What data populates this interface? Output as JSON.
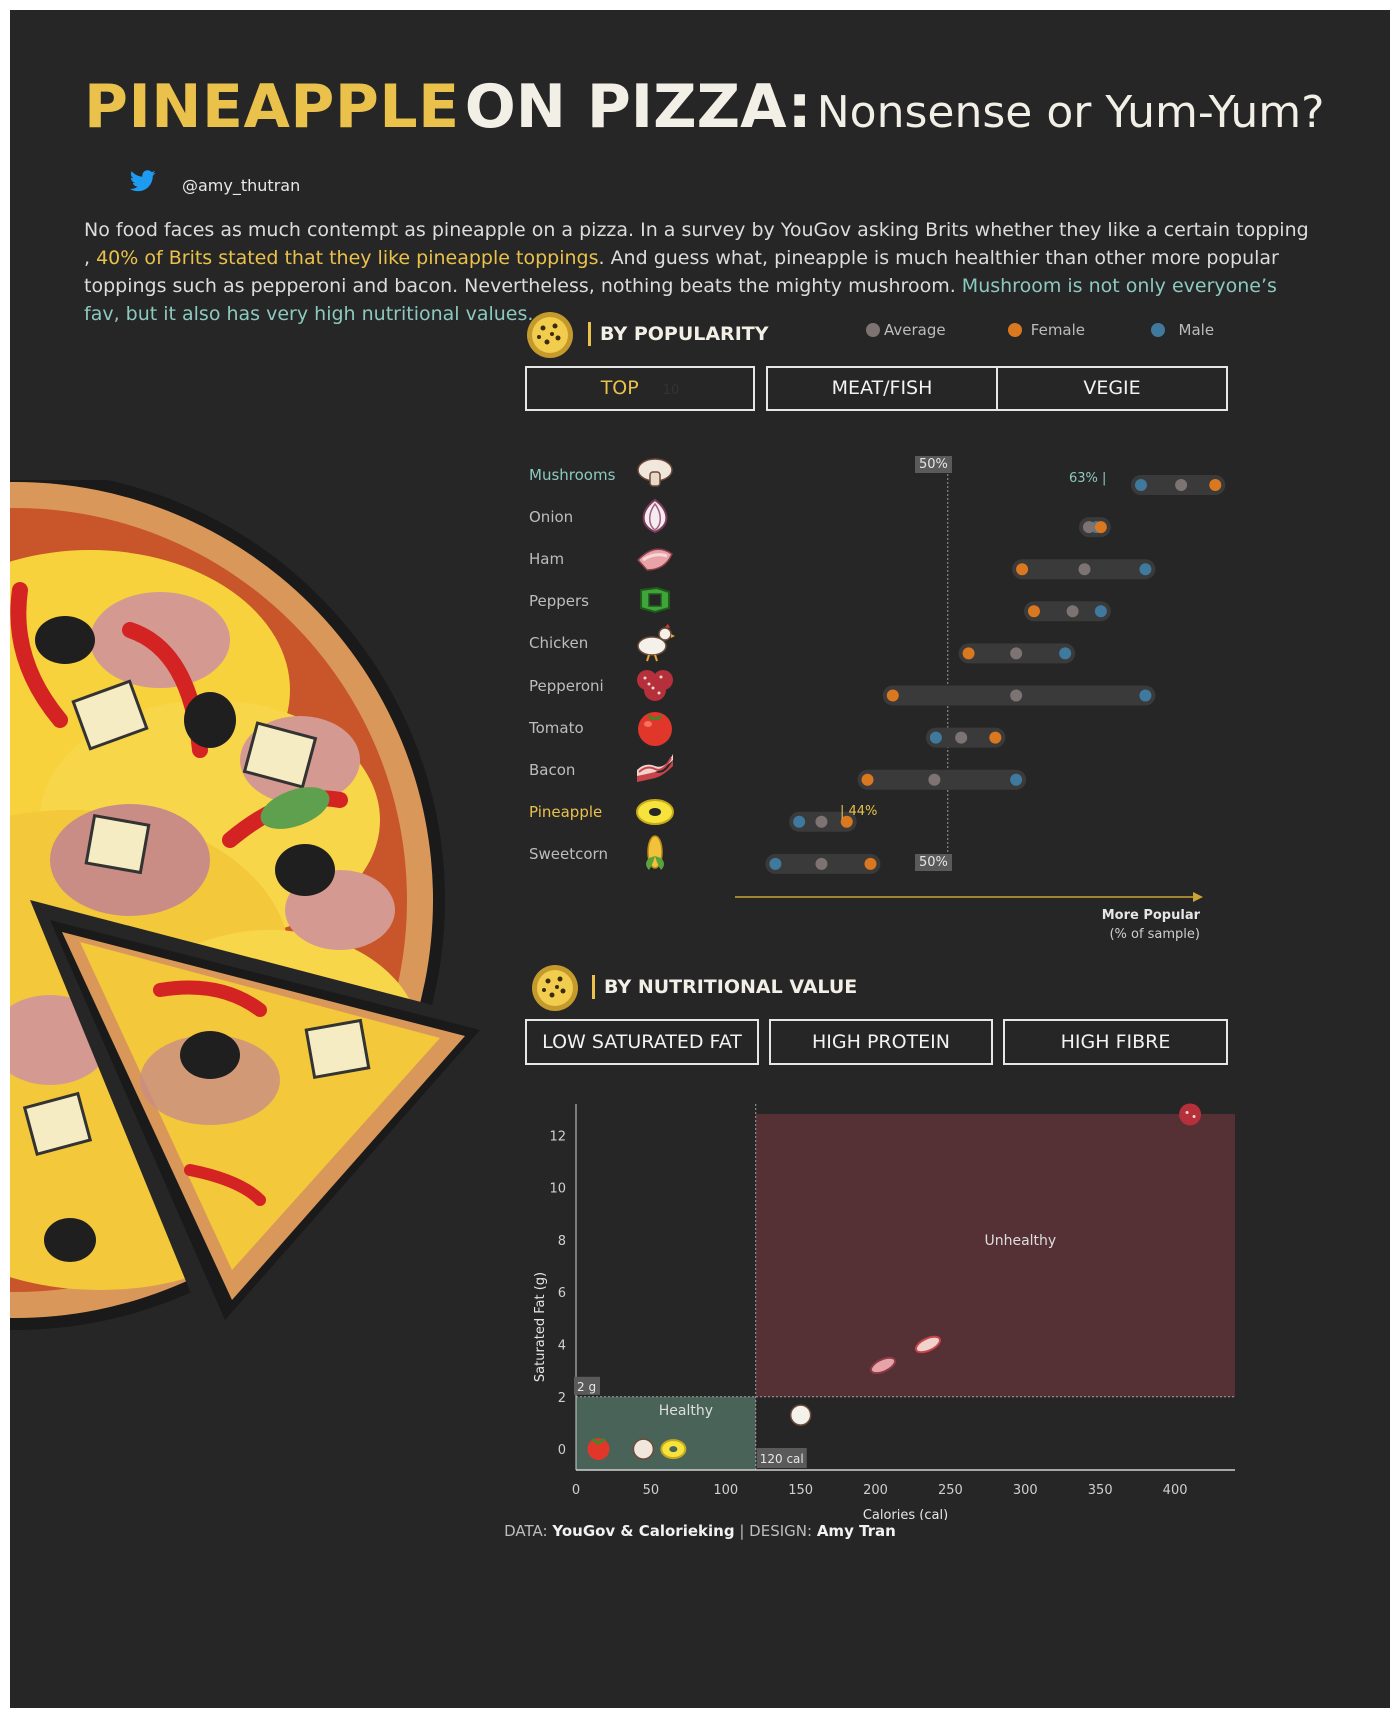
{
  "header": {
    "title_part1": "PINEAPPLE",
    "title_part2": "ON PIZZA:",
    "title_part3": "Nonsense or Yum-Yum?",
    "handle": "@amy_thutran"
  },
  "intro": {
    "s1": "No food faces as much contempt as pineapple on a pizza. In a survey by YouGov asking Brits whether they like a certain topping , ",
    "s2": "40% of Brits stated that they like pineapple toppings",
    "s3": ". And guess what, pineapple is much healthier than other more popular toppings such as pepperoni and bacon. Nevertheless, nothing beats the mighty mushroom. ",
    "s4": "Mushroom is not only everyone’s fav, but it also has very high nutritional values."
  },
  "popularity": {
    "section_title": "BY POPULARITY",
    "legend": [
      {
        "label": "Average",
        "color": "#7d7373"
      },
      {
        "label": "Female",
        "color": "#d9781f"
      },
      {
        "label": "Male",
        "color": "#3f7a9e"
      }
    ],
    "tabs": [
      {
        "label": "TOP"
      },
      {
        "label": "MEAT/FISH"
      },
      {
        "label": "VEGIE"
      }
    ],
    "ghost_tab_number": "10",
    "ref_label_top": "50%",
    "ref_label_bottom": "50%",
    "axis_label_1": "More Popular",
    "axis_label_2": "(% of sample)",
    "annotation_mushroom": "63% |",
    "annotation_pineapple": "| 44%"
  },
  "nutrition": {
    "section_title": "BY NUTRITIONAL VALUE",
    "tabs": [
      {
        "label": "LOW SATURATED FAT"
      },
      {
        "label": "HIGH PROTEIN"
      },
      {
        "label": "HIGH FIBRE"
      }
    ],
    "healthy_label": "Healthy",
    "unhealthy_label": "Unhealthy",
    "fat_threshold_label": "2 g",
    "cal_threshold_label": "120 cal"
  },
  "footer": {
    "data_label": "DATA:",
    "data_source": "YouGov & Calorieking",
    "design_label": "| DESIGN:",
    "designer": "Amy Tran"
  },
  "chart_data": [
    {
      "type": "dumbbell",
      "title": "BY POPULARITY",
      "xlabel": "More Popular (% of sample)",
      "xlim": [
        34,
        70
      ],
      "reference_line": 50,
      "series_names": [
        "Average",
        "Female",
        "Male"
      ],
      "rows": [
        {
          "name": "Mushrooms",
          "average": 65.7,
          "female": 68.0,
          "male": 63.0
        },
        {
          "name": "Onion",
          "average": 59.5,
          "female": 60.3,
          "male": 60.0
        },
        {
          "name": "Ham",
          "average": 59.2,
          "female": 55.0,
          "male": 63.3
        },
        {
          "name": "Peppers",
          "average": 58.4,
          "female": 55.8,
          "male": 60.3
        },
        {
          "name": "Chicken",
          "average": 54.6,
          "female": 51.4,
          "male": 57.9
        },
        {
          "name": "Pepperoni",
          "average": 54.6,
          "female": 46.3,
          "male": 63.3
        },
        {
          "name": "Tomato",
          "average": 50.9,
          "female": 53.2,
          "male": 49.2
        },
        {
          "name": "Bacon",
          "average": 49.1,
          "female": 44.6,
          "male": 54.6
        },
        {
          "name": "Pineapple",
          "average": 41.5,
          "female": 43.2,
          "male": 40.0
        },
        {
          "name": "Sweetcorn",
          "average": 41.5,
          "female": 44.8,
          "male": 38.4
        }
      ]
    },
    {
      "type": "scatter",
      "title": "BY NUTRITIONAL VALUE",
      "xlabel": "Calories (cal)",
      "ylabel": "Saturated Fat (g)",
      "xlim": [
        0,
        440
      ],
      "ylim": [
        -0.8,
        13.2
      ],
      "x_ticks": [
        0,
        50,
        100,
        150,
        200,
        250,
        300,
        350,
        400
      ],
      "y_ticks": [
        0,
        2,
        4,
        6,
        8,
        10,
        12
      ],
      "thresholds": {
        "calories": 120,
        "saturated_fat": 2
      },
      "points": [
        {
          "name": "Tomato",
          "x": 15,
          "y": 0.0
        },
        {
          "name": "Mushrooms",
          "x": 45,
          "y": 0.0
        },
        {
          "name": "Pineapple",
          "x": 65,
          "y": 0.0
        },
        {
          "name": "Chicken",
          "x": 150,
          "y": 1.3
        },
        {
          "name": "Ham",
          "x": 205,
          "y": 3.2
        },
        {
          "name": "Bacon",
          "x": 235,
          "y": 4.0
        },
        {
          "name": "Pepperoni",
          "x": 410,
          "y": 12.8
        }
      ]
    }
  ]
}
